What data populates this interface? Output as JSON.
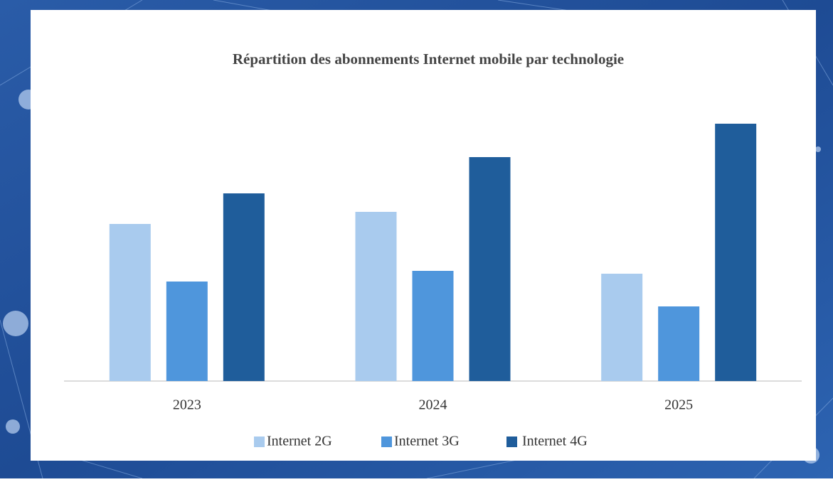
{
  "chart_data": {
    "type": "bar",
    "title": "Répartition des abonnements Internet mobile par technologie",
    "categories": [
      "2023",
      "2024",
      "2025"
    ],
    "series": [
      {
        "name": "Internet 2G",
        "color": "#a9cbee",
        "values": [
          221,
          238,
          151
        ]
      },
      {
        "name": "Internet 3G",
        "color": "#4f96dc",
        "values": [
          140,
          155,
          105
        ]
      },
      {
        "name": "Internet 4G",
        "color": "#1f5d9b",
        "values": [
          264,
          315,
          362
        ]
      }
    ]
  }
}
